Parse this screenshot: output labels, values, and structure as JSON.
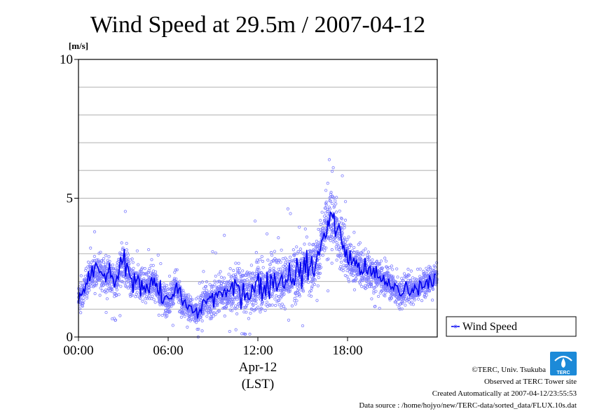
{
  "title": "Wind Speed at 29.5m / 2007-04-12",
  "chart_data": {
    "type": "scatter",
    "title": "Wind Speed at 29.5m / 2007-04-12",
    "ylabel": "[m/s]",
    "xlabel": "Apr-12",
    "xlabel_sub": "(LST)",
    "ylim": [
      0,
      10
    ],
    "xlim_hours": [
      0,
      24
    ],
    "y_ticks": [
      {
        "value": 0,
        "label": "0"
      },
      {
        "value": 5,
        "label": "5"
      },
      {
        "value": 10,
        "label": "10"
      }
    ],
    "x_ticks": [
      {
        "hour": 0,
        "label": "00:00"
      },
      {
        "hour": 6,
        "label": "06:00"
      },
      {
        "hour": 12,
        "label": "12:00"
      },
      {
        "hour": 18,
        "label": "18:00"
      }
    ],
    "grid": true,
    "legend_position": "right",
    "series": [
      {
        "name": "Wind Speed",
        "color": "#0000ee",
        "scatter_color": "#7b7bff",
        "x_hours": [
          0,
          0.5,
          1,
          1.5,
          2,
          2.5,
          3,
          3.5,
          4,
          4.5,
          5,
          5.5,
          6,
          6.5,
          7,
          7.5,
          8,
          8.5,
          9,
          9.5,
          10,
          10.5,
          11,
          11.5,
          12,
          12.5,
          13,
          13.5,
          14,
          14.5,
          15,
          15.5,
          16,
          16.5,
          17,
          17.5,
          18,
          18.5,
          19,
          19.5,
          20,
          20.5,
          21,
          21.5,
          22,
          22.5,
          23,
          23.5
        ],
        "mean": [
          1.3,
          1.9,
          2.4,
          2.3,
          2.2,
          2.0,
          2.7,
          2.1,
          2.0,
          1.8,
          2.1,
          1.5,
          1.3,
          1.8,
          1.2,
          1.0,
          0.8,
          1.4,
          1.3,
          1.7,
          1.5,
          1.8,
          1.7,
          1.6,
          1.9,
          1.8,
          2.1,
          2.0,
          2.2,
          2.3,
          2.4,
          2.5,
          2.7,
          4.0,
          4.3,
          3.6,
          2.9,
          2.6,
          2.5,
          2.3,
          2.2,
          2.0,
          1.9,
          1.5,
          1.8,
          1.7,
          1.9,
          2.1
        ],
        "spread": [
          0.6,
          0.8,
          1.0,
          0.9,
          0.9,
          0.9,
          1.1,
          0.9,
          0.9,
          0.8,
          0.9,
          0.8,
          0.8,
          0.9,
          0.8,
          0.7,
          0.7,
          0.9,
          0.9,
          1.0,
          1.0,
          1.1,
          1.2,
          1.2,
          1.3,
          1.3,
          1.3,
          1.3,
          1.3,
          1.4,
          1.4,
          1.4,
          1.4,
          1.7,
          1.7,
          1.5,
          1.2,
          1.1,
          1.0,
          0.9,
          0.9,
          0.8,
          0.8,
          0.8,
          0.8,
          0.7,
          0.7,
          0.7
        ],
        "max": [
          2.6,
          3.3,
          4.1,
          3.9,
          4.3,
          4.4,
          5.4,
          3.5,
          3.2,
          3.5,
          3.7,
          2.9,
          2.7,
          3.0,
          2.6,
          2.4,
          2.2,
          3.0,
          3.1,
          3.6,
          4.6,
          4.0,
          4.3,
          4.7,
          4.8,
          3.7,
          4.9,
          3.9,
          5.0,
          4.8,
          5.3,
          5.1,
          6.0,
          7.5,
          6.9,
          6.6,
          4.5,
          3.9,
          3.5,
          3.2,
          3.6,
          3.0,
          2.9,
          2.3,
          2.7,
          2.5,
          2.6,
          2.9
        ],
        "min": [
          0.5,
          0.7,
          0.9,
          0.8,
          0.7,
          0.6,
          0.9,
          0.4,
          0.4,
          0.3,
          0.5,
          0.2,
          0.2,
          0.3,
          0.1,
          0.0,
          0.0,
          0.1,
          0.1,
          0.2,
          0.2,
          0.2,
          0.1,
          0.1,
          0.2,
          0.1,
          0.2,
          0.1,
          0.2,
          0.3,
          0.4,
          0.5,
          0.7,
          1.2,
          1.4,
          1.3,
          1.2,
          1.1,
          1.0,
          0.9,
          0.8,
          0.7,
          0.6,
          0.5,
          0.6,
          0.5,
          0.7,
          0.8
        ]
      }
    ]
  },
  "legend": {
    "label": "Wind Speed"
  },
  "credits": {
    "copyright": "©TERC, Univ. Tsukuba",
    "observed": "Observed at TERC Tower site",
    "created": "Created Automatically at 2007-04-12/23:55:53",
    "source": "Data source : /home/hojyo/new/TERC-data/sorted_data/FLUX.10s.dat",
    "logo_text": "TERC"
  }
}
